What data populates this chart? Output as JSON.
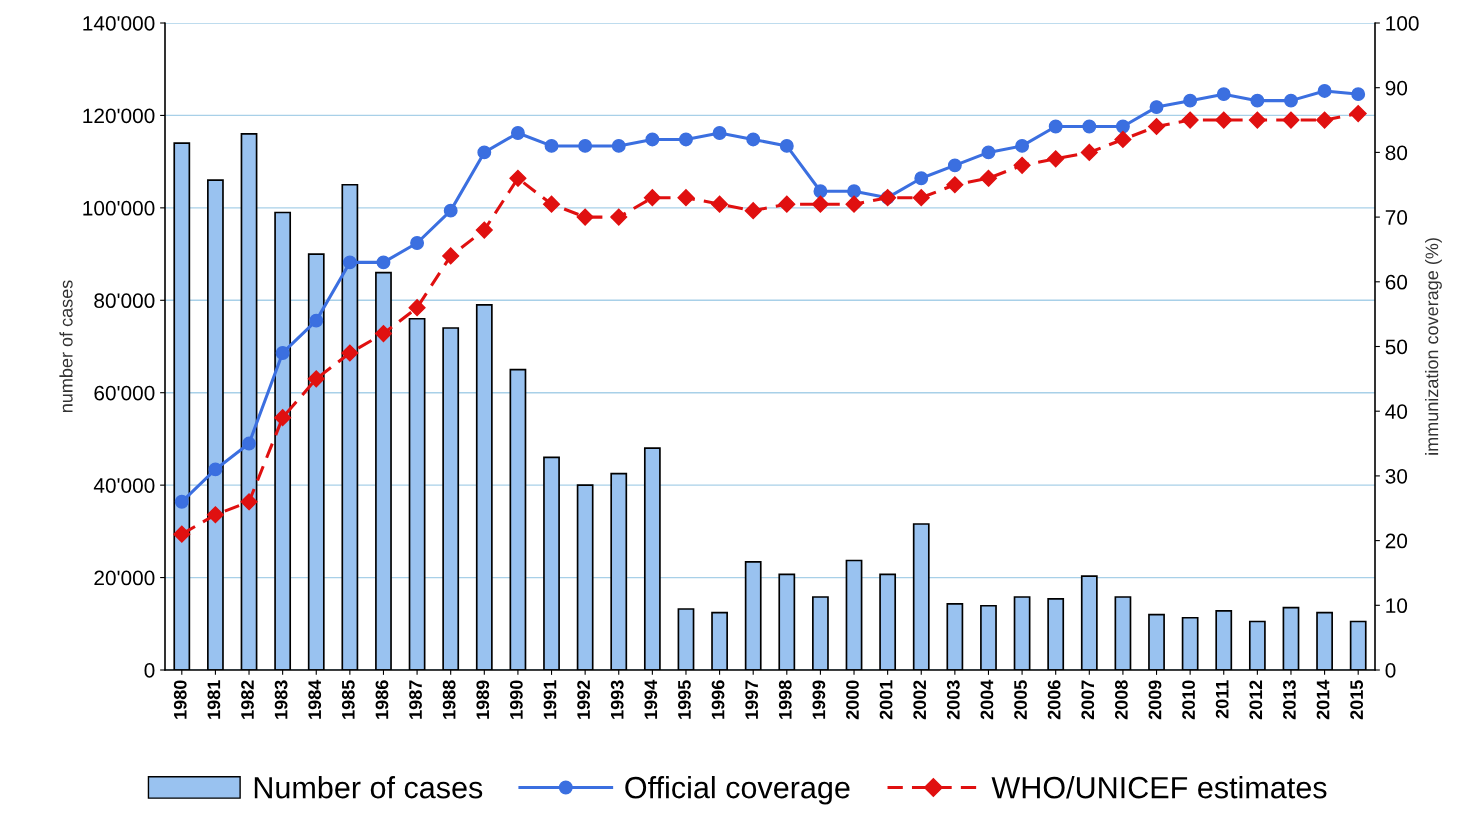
{
  "chart_data": {
    "type": "bar",
    "ylabel": "number of cases",
    "y2label": "immunization coverage (%)",
    "categories": [
      "1980",
      "1981",
      "1982",
      "1983",
      "1984",
      "1985",
      "1986",
      "1987",
      "1988",
      "1989",
      "1990",
      "1991",
      "1992",
      "1993",
      "1994",
      "1995",
      "1996",
      "1997",
      "1998",
      "1999",
      "2000",
      "2001",
      "2002",
      "2003",
      "2004",
      "2005",
      "2006",
      "2007",
      "2008",
      "2009",
      "2010",
      "2011",
      "2012",
      "2013",
      "2014",
      "2015"
    ],
    "series": [
      {
        "name": "Number of cases",
        "color": "#99c2f0",
        "values": [
          114000,
          106000,
          116000,
          99000,
          90000,
          105000,
          86000,
          76000,
          74000,
          79000,
          65000,
          46000,
          40000,
          42500,
          48000,
          13200,
          12400,
          23400,
          20700,
          15800,
          23700,
          20700,
          31600,
          14300,
          13900,
          15800,
          15400,
          20300,
          15800,
          12000,
          11300,
          12800,
          10500,
          13500,
          12400,
          10500
        ]
      },
      {
        "name": "Official coverage",
        "type": "line",
        "axis": "y2",
        "color": "#3b6fe0",
        "marker": "circle",
        "line_style": "solid",
        "values": [
          26,
          31,
          35,
          49,
          54,
          63,
          63,
          66,
          71,
          80,
          83,
          81,
          81,
          81,
          82,
          82,
          83,
          82,
          81,
          74,
          74,
          73,
          76,
          78,
          80,
          81,
          84,
          84,
          84,
          87,
          88,
          89,
          88,
          88,
          89.5,
          89
        ]
      },
      {
        "name": "WHO/UNICEF estimates",
        "type": "line",
        "axis": "y2",
        "color": "#e01010",
        "marker": "diamond",
        "line_style": "dashed",
        "values": [
          21,
          24,
          26,
          39,
          45,
          49,
          52,
          56,
          64,
          68,
          76,
          72,
          70,
          70,
          73,
          73,
          72,
          71,
          72,
          72,
          72,
          73,
          73,
          75,
          76,
          78,
          79,
          80,
          82,
          84,
          85,
          85,
          85,
          85,
          85,
          86
        ]
      }
    ],
    "ylim": [
      0,
      140000
    ],
    "yticks": [
      {
        "value": 0,
        "label": "0"
      },
      {
        "value": 20000,
        "label": "20'000"
      },
      {
        "value": 40000,
        "label": "40'000"
      },
      {
        "value": 60000,
        "label": "60'000"
      },
      {
        "value": 80000,
        "label": "80'000"
      },
      {
        "value": 100000,
        "label": "100'000"
      },
      {
        "value": 120000,
        "label": "120'000"
      },
      {
        "value": 140000,
        "label": "140'000"
      }
    ],
    "y2lim": [
      0,
      100
    ],
    "y2ticks": [
      0,
      10,
      20,
      30,
      40,
      50,
      60,
      70,
      80,
      90,
      100
    ],
    "grid": "y",
    "legend": "bottom"
  }
}
